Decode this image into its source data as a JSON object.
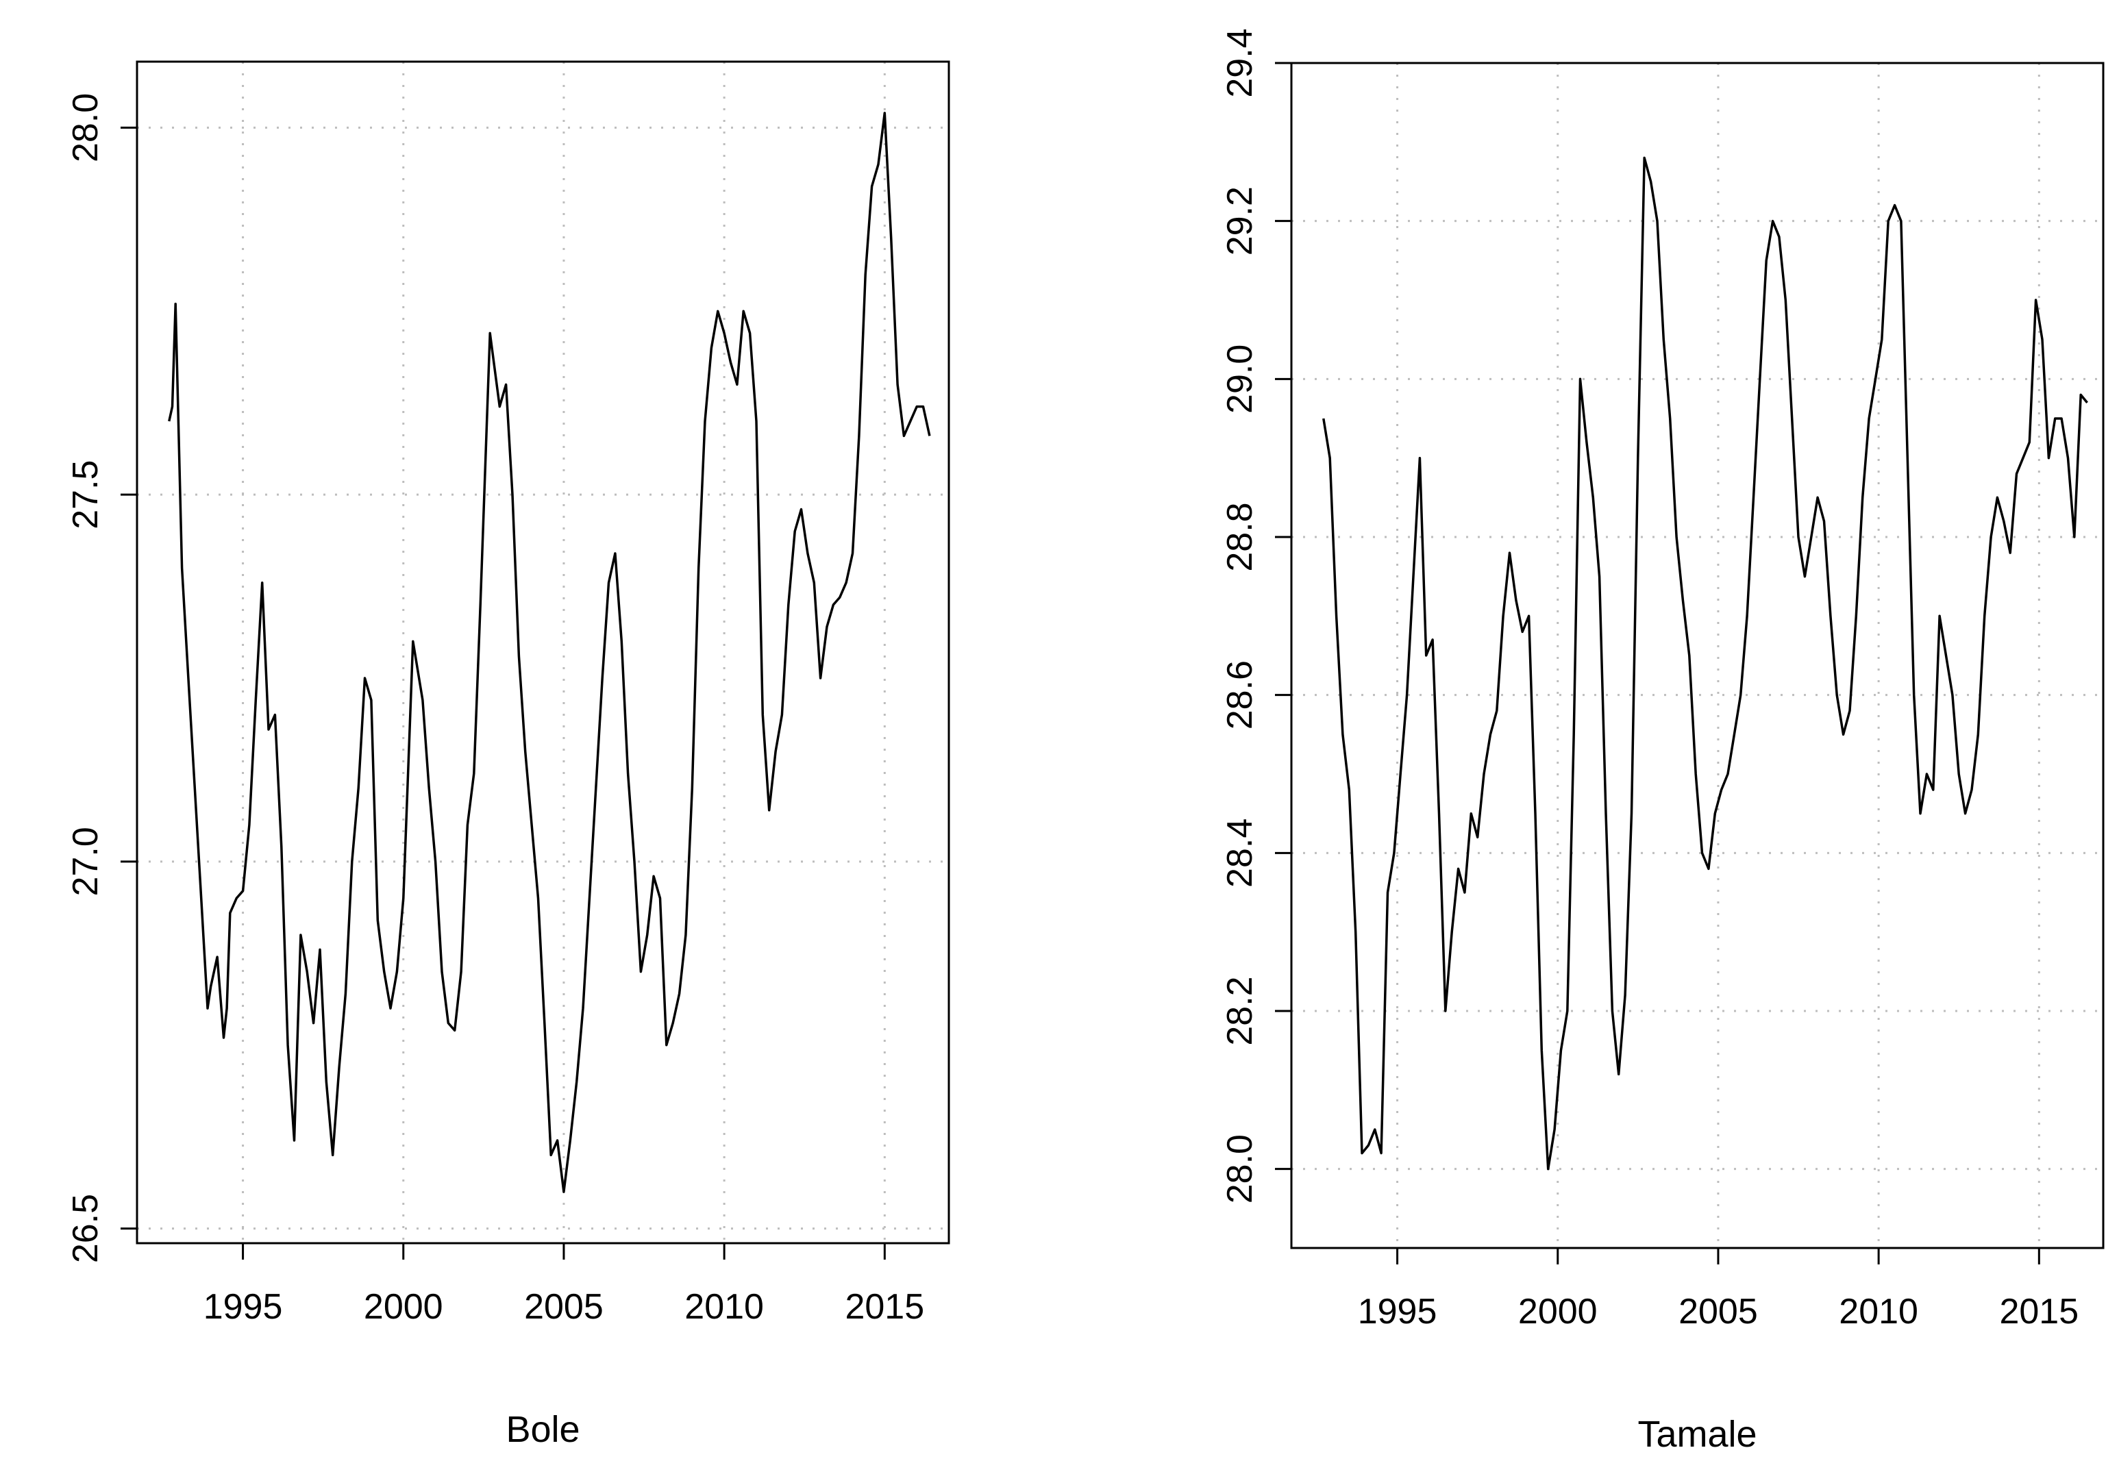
{
  "figure": {
    "background": "#ffffff",
    "line_color": "#000000",
    "grid_color": "#bdbdbd"
  },
  "chart_data": [
    {
      "type": "line",
      "title": "",
      "xlabel": "Bole",
      "ylabel": "",
      "xlim": [
        1991.7,
        2017.0
      ],
      "ylim": [
        26.48,
        28.09
      ],
      "xticks": [
        1995,
        2000,
        2005,
        2010,
        2015
      ],
      "xtick_labels": [
        "1995",
        "2000",
        "2005",
        "2010",
        "2015"
      ],
      "yticks": [
        26.5,
        27.0,
        27.5,
        28.0
      ],
      "ytick_labels": [
        "26.5",
        "27.0",
        "27.5",
        "28.0"
      ],
      "grid": true,
      "grid_style": "dotted",
      "series": [
        {
          "x": [
            1992.7,
            1992.8,
            1992.9,
            1993.0,
            1993.1,
            1993.3,
            1993.5,
            1993.7,
            1993.9,
            1994.0,
            1994.2,
            1994.4,
            1994.5,
            1994.6,
            1994.8,
            1995.0,
            1995.2,
            1995.4,
            1995.6,
            1995.8,
            1996.0,
            1996.2,
            1996.4,
            1996.6,
            1996.8,
            1997.0,
            1997.2,
            1997.4,
            1997.6,
            1997.8,
            1998.0,
            1998.2,
            1998.4,
            1998.6,
            1998.8,
            1999.0,
            1999.2,
            1999.4,
            1999.6,
            1999.8,
            2000.0,
            2000.3,
            2000.6,
            2000.8,
            2001.0,
            2001.2,
            2001.4,
            2001.6,
            2001.8,
            2002.0,
            2002.2,
            2002.4,
            2002.7,
            2003.0,
            2003.2,
            2003.4,
            2003.6,
            2003.8,
            2004.0,
            2004.2,
            2004.4,
            2004.6,
            2004.8,
            2005.0,
            2005.2,
            2005.4,
            2005.6,
            2005.8,
            2006.0,
            2006.2,
            2006.4,
            2006.6,
            2006.8,
            2007.0,
            2007.2,
            2007.4,
            2007.6,
            2007.8,
            2008.0,
            2008.2,
            2008.4,
            2008.6,
            2008.8,
            2009.0,
            2009.2,
            2009.4,
            2009.6,
            2009.8,
            2010.0,
            2010.2,
            2010.4,
            2010.6,
            2010.8,
            2011.0,
            2011.2,
            2011.4,
            2011.6,
            2011.8,
            2012.0,
            2012.2,
            2012.4,
            2012.6,
            2012.8,
            2013.0,
            2013.2,
            2013.4,
            2013.6,
            2013.8,
            2014.0,
            2014.2,
            2014.4,
            2014.6,
            2014.8,
            2015.0,
            2015.2,
            2015.4,
            2015.6,
            2015.8,
            2016.0,
            2016.2,
            2016.4
          ],
          "y": [
            27.6,
            27.62,
            27.76,
            27.58,
            27.4,
            27.25,
            27.1,
            26.95,
            26.8,
            26.83,
            26.87,
            26.76,
            26.8,
            26.93,
            26.95,
            26.96,
            27.05,
            27.22,
            27.38,
            27.18,
            27.2,
            27.02,
            26.75,
            26.62,
            26.9,
            26.85,
            26.78,
            26.88,
            26.7,
            26.6,
            26.72,
            26.82,
            27.0,
            27.1,
            27.25,
            27.22,
            26.92,
            26.85,
            26.8,
            26.85,
            26.95,
            27.3,
            27.22,
            27.1,
            27.0,
            26.85,
            26.78,
            26.77,
            26.85,
            27.05,
            27.12,
            27.35,
            27.72,
            27.62,
            27.65,
            27.5,
            27.28,
            27.15,
            27.05,
            26.95,
            26.78,
            26.6,
            26.62,
            26.55,
            26.62,
            26.7,
            26.8,
            26.95,
            27.1,
            27.25,
            27.38,
            27.42,
            27.3,
            27.12,
            27.0,
            26.85,
            26.9,
            26.98,
            26.95,
            26.75,
            26.78,
            26.82,
            26.9,
            27.1,
            27.4,
            27.6,
            27.7,
            27.75,
            27.72,
            27.68,
            27.65,
            27.75,
            27.72,
            27.6,
            27.2,
            27.07,
            27.15,
            27.2,
            27.35,
            27.45,
            27.48,
            27.42,
            27.38,
            27.25,
            27.32,
            27.35,
            27.36,
            27.38,
            27.42,
            27.58,
            27.8,
            27.92,
            27.95,
            28.02,
            27.85,
            27.65,
            27.58,
            27.6,
            27.62,
            27.62,
            27.58
          ]
        }
      ]
    },
    {
      "type": "line",
      "title": "",
      "xlabel": "Tamale",
      "ylabel": "",
      "xlim": [
        1991.7,
        2017.0
      ],
      "ylim": [
        27.9,
        29.4
      ],
      "xticks": [
        1995,
        2000,
        2005,
        2010,
        2015
      ],
      "xtick_labels": [
        "1995",
        "2000",
        "2005",
        "2010",
        "2015"
      ],
      "yticks": [
        28.0,
        28.2,
        28.4,
        28.6,
        28.8,
        29.0,
        29.2,
        29.4
      ],
      "ytick_labels": [
        "28.0",
        "28.2",
        "28.4",
        "28.6",
        "28.8",
        "29.0",
        "29.2",
        "29.4"
      ],
      "grid": true,
      "grid_style": "dotted",
      "series": [
        {
          "x": [
            1992.7,
            1992.9,
            1993.1,
            1993.3,
            1993.5,
            1993.7,
            1993.9,
            1994.1,
            1994.3,
            1994.5,
            1994.7,
            1994.9,
            1995.1,
            1995.3,
            1995.5,
            1995.7,
            1995.9,
            1996.1,
            1996.3,
            1996.5,
            1996.7,
            1996.9,
            1997.1,
            1997.3,
            1997.5,
            1997.7,
            1997.9,
            1998.1,
            1998.3,
            1998.5,
            1998.7,
            1998.9,
            1999.1,
            1999.3,
            1999.5,
            1999.7,
            1999.9,
            2000.1,
            2000.3,
            2000.5,
            2000.7,
            2000.9,
            2001.1,
            2001.3,
            2001.5,
            2001.7,
            2001.9,
            2002.1,
            2002.3,
            2002.5,
            2002.7,
            2002.9,
            2003.1,
            2003.3,
            2003.5,
            2003.7,
            2003.9,
            2004.1,
            2004.3,
            2004.5,
            2004.7,
            2004.9,
            2005.1,
            2005.3,
            2005.5,
            2005.7,
            2005.9,
            2006.1,
            2006.3,
            2006.5,
            2006.7,
            2006.9,
            2007.1,
            2007.3,
            2007.5,
            2007.7,
            2007.9,
            2008.1,
            2008.3,
            2008.5,
            2008.7,
            2008.9,
            2009.1,
            2009.3,
            2009.5,
            2009.7,
            2009.9,
            2010.1,
            2010.3,
            2010.5,
            2010.7,
            2010.9,
            2011.1,
            2011.3,
            2011.5,
            2011.7,
            2011.9,
            2012.1,
            2012.3,
            2012.5,
            2012.7,
            2012.9,
            2013.1,
            2013.3,
            2013.5,
            2013.7,
            2013.9,
            2014.1,
            2014.3,
            2014.5,
            2014.7,
            2014.9,
            2015.1,
            2015.3,
            2015.5,
            2015.7,
            2015.9,
            2016.1,
            2016.3,
            2016.5
          ],
          "y": [
            28.95,
            28.9,
            28.7,
            28.55,
            28.48,
            28.3,
            28.02,
            28.03,
            28.05,
            28.02,
            28.35,
            28.4,
            28.5,
            28.6,
            28.75,
            28.9,
            28.65,
            28.67,
            28.45,
            28.2,
            28.3,
            28.38,
            28.35,
            28.45,
            28.42,
            28.5,
            28.55,
            28.58,
            28.7,
            28.78,
            28.72,
            28.68,
            28.7,
            28.45,
            28.15,
            28.0,
            28.05,
            28.15,
            28.2,
            28.55,
            29.0,
            28.92,
            28.85,
            28.75,
            28.45,
            28.2,
            28.12,
            28.22,
            28.45,
            28.9,
            29.28,
            29.25,
            29.2,
            29.05,
            28.95,
            28.8,
            28.72,
            28.65,
            28.5,
            28.4,
            28.38,
            28.45,
            28.48,
            28.5,
            28.55,
            28.6,
            28.7,
            28.85,
            29.0,
            29.15,
            29.2,
            29.18,
            29.1,
            28.95,
            28.8,
            28.75,
            28.8,
            28.85,
            28.82,
            28.7,
            28.6,
            28.55,
            28.58,
            28.7,
            28.85,
            28.95,
            29.0,
            29.05,
            29.2,
            29.22,
            29.2,
            28.9,
            28.6,
            28.45,
            28.5,
            28.48,
            28.7,
            28.65,
            28.6,
            28.5,
            28.45,
            28.48,
            28.55,
            28.7,
            28.8,
            28.85,
            28.82,
            28.78,
            28.88,
            28.9,
            28.92,
            29.1,
            29.05,
            28.9,
            28.95,
            28.95,
            28.9,
            28.8,
            28.98,
            28.97
          ]
        }
      ]
    }
  ]
}
